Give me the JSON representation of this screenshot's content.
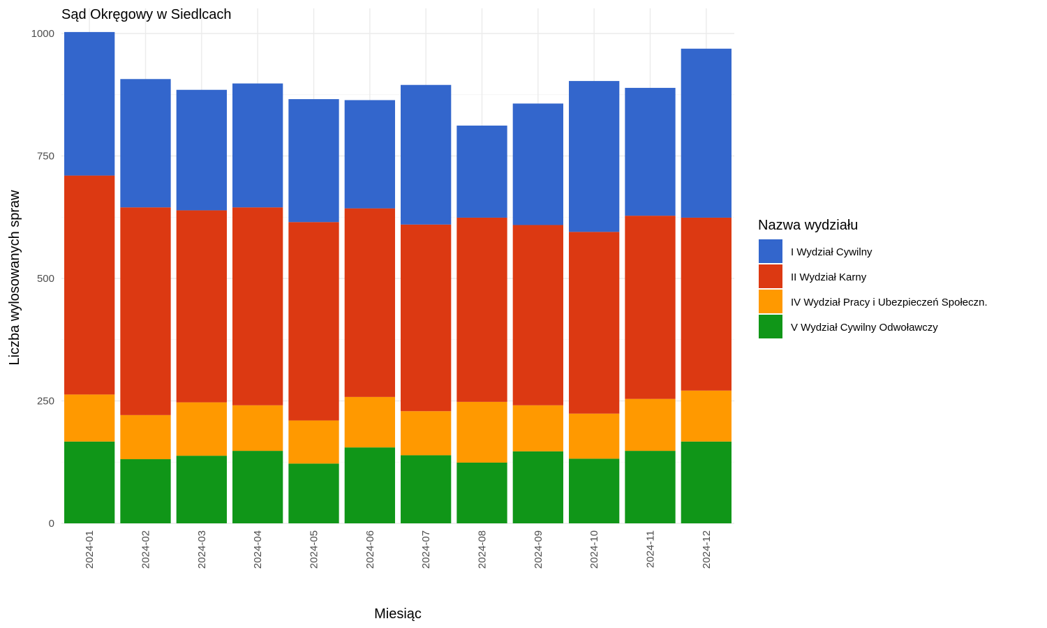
{
  "chart_data": {
    "type": "bar",
    "stacked": true,
    "title": "Sąd Okręgowy w Siedlcach",
    "xlabel": "Miesiąc",
    "ylabel": "Liczba wylosowanych spraw",
    "ylim": [
      0,
      1000
    ],
    "yticks": [
      0,
      250,
      500,
      750,
      1000
    ],
    "grid": true,
    "legend_title": "Nazwa wydziału",
    "legend_position": "right",
    "categories": [
      "2024-01",
      "2024-02",
      "2024-03",
      "2024-04",
      "2024-05",
      "2024-06",
      "2024-07",
      "2024-08",
      "2024-09",
      "2024-10",
      "2024-11",
      "2024-12"
    ],
    "series": [
      {
        "name": "V Wydział Cywilny Odwoławczy",
        "color": "#109618",
        "values": [
          167,
          131,
          138,
          148,
          122,
          155,
          139,
          124,
          147,
          132,
          148,
          167
        ]
      },
      {
        "name": "IV Wydział Pracy i Ubezpieczeń Społeczn.",
        "color": "#ff9900",
        "values": [
          96,
          90,
          109,
          93,
          88,
          103,
          90,
          124,
          94,
          92,
          106,
          104
        ]
      },
      {
        "name": "II Wydział Karny",
        "color": "#dc3912",
        "values": [
          447,
          424,
          392,
          404,
          405,
          385,
          381,
          376,
          368,
          371,
          374,
          353
        ]
      },
      {
        "name": "I Wydział Cywilny",
        "color": "#3366cc",
        "values": [
          293,
          262,
          246,
          253,
          251,
          221,
          285,
          188,
          248,
          308,
          261,
          345
        ]
      }
    ],
    "legend_order": [
      "I Wydział Cywilny",
      "II Wydział Karny",
      "IV Wydział Pracy i Ubezpieczeń Społeczn.",
      "V Wydział Cywilny Odwoławczy"
    ]
  }
}
